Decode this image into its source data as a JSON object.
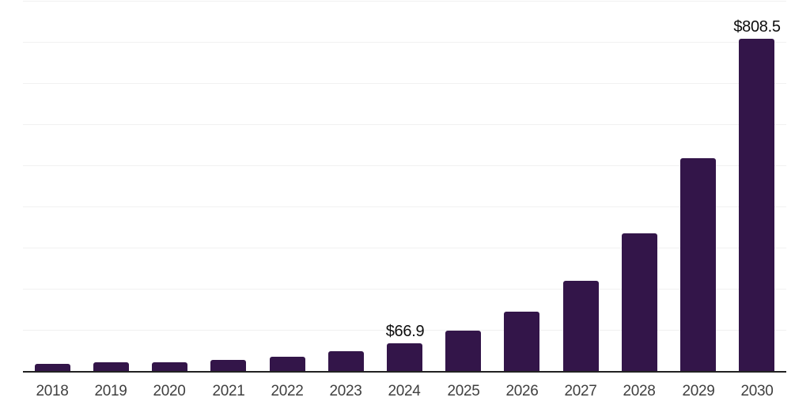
{
  "chart_data": {
    "type": "bar",
    "title": "",
    "xlabel": "",
    "ylabel": "",
    "categories": [
      "2018",
      "2019",
      "2020",
      "2021",
      "2022",
      "2023",
      "2024",
      "2025",
      "2026",
      "2027",
      "2028",
      "2029",
      "2030"
    ],
    "values": [
      18,
      21,
      21,
      26,
      35,
      48,
      66.9,
      99,
      145,
      220,
      335,
      517,
      808.5
    ],
    "point_labels": [
      {
        "category": "2024",
        "text": "$66.9"
      },
      {
        "category": "2030",
        "text": "$808.5"
      }
    ],
    "ylim": [
      0,
      900
    ],
    "grid_step": 100,
    "grid": true,
    "legend": false,
    "y_axis_tick_labels_visible": false
  },
  "colors": {
    "bar": "#331549",
    "gridline": "#f1f1f1",
    "axis_line": "#222222",
    "value_label": "#0d0d0d",
    "tick_label": "#404040",
    "background": "#ffffff"
  }
}
